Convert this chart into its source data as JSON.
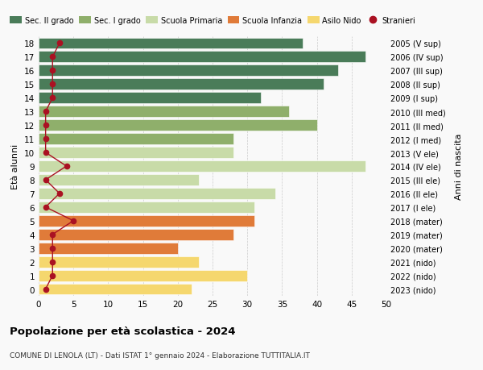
{
  "ages": [
    0,
    1,
    2,
    3,
    4,
    5,
    6,
    7,
    8,
    9,
    10,
    11,
    12,
    13,
    14,
    15,
    16,
    17,
    18
  ],
  "right_labels": [
    "2023 (nido)",
    "2022 (nido)",
    "2021 (nido)",
    "2020 (mater)",
    "2019 (mater)",
    "2018 (mater)",
    "2017 (I ele)",
    "2016 (II ele)",
    "2015 (III ele)",
    "2014 (IV ele)",
    "2013 (V ele)",
    "2012 (I med)",
    "2011 (II med)",
    "2010 (III med)",
    "2009 (I sup)",
    "2008 (II sup)",
    "2007 (III sup)",
    "2006 (IV sup)",
    "2005 (V sup)"
  ],
  "bar_values": [
    22,
    30,
    23,
    20,
    28,
    31,
    31,
    34,
    23,
    47,
    28,
    28,
    40,
    36,
    32,
    41,
    43,
    47,
    38
  ],
  "bar_colors": [
    "#f5d76e",
    "#f5d76e",
    "#f5d76e",
    "#e07b39",
    "#e07b39",
    "#e07b39",
    "#c8dba8",
    "#c8dba8",
    "#c8dba8",
    "#c8dba8",
    "#c8dba8",
    "#8faf6b",
    "#8faf6b",
    "#8faf6b",
    "#4a7c59",
    "#4a7c59",
    "#4a7c59",
    "#4a7c59",
    "#4a7c59"
  ],
  "stranieri_values": [
    1,
    2,
    2,
    2,
    2,
    5,
    1,
    3,
    1,
    4,
    1,
    1,
    1,
    1,
    2,
    2,
    2,
    2,
    3
  ],
  "legend_labels": [
    "Sec. II grado",
    "Sec. I grado",
    "Scuola Primaria",
    "Scuola Infanzia",
    "Asilo Nido",
    "Stranieri"
  ],
  "legend_colors": [
    "#4a7c59",
    "#8faf6b",
    "#c8dba8",
    "#e07b39",
    "#f5d76e",
    "#aa1122"
  ],
  "ylabel_left": "Età alunni",
  "ylabel_right": "Anni di nascita",
  "title": "Popolazione per età scolastica - 2024",
  "subtitle": "COMUNE DI LENOLA (LT) - Dati ISTAT 1° gennaio 2024 - Elaborazione TUTTITALIA.IT",
  "xlim": [
    0,
    50
  ],
  "xticks": [
    0,
    5,
    10,
    15,
    20,
    25,
    30,
    35,
    40,
    45,
    50
  ],
  "bg_color": "#f9f9f9",
  "stranieri_color": "#aa1122"
}
